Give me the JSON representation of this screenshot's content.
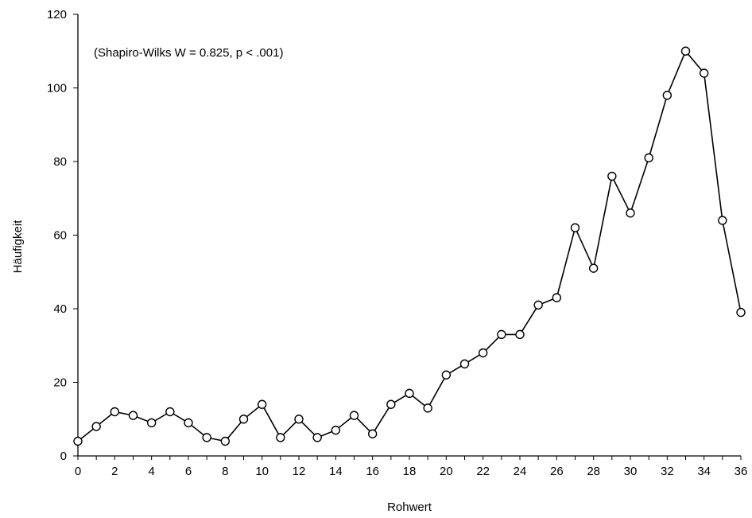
{
  "chart_data": {
    "type": "line",
    "xlabel": "Rohwert",
    "ylabel": "Häufigkeit",
    "annotation": "(Shapiro-Wilks W = 0.825, p < .001)",
    "xlim": [
      0,
      36
    ],
    "ylim": [
      0,
      120
    ],
    "x_ticks": [
      0,
      2,
      4,
      6,
      8,
      10,
      12,
      14,
      16,
      18,
      20,
      22,
      24,
      26,
      28,
      30,
      32,
      34,
      36
    ],
    "x_tick_labels": [
      "0",
      "2",
      "4",
      "6",
      "8",
      "10",
      "12",
      "14",
      "16",
      "18",
      "20",
      "22",
      "24",
      "26",
      "28",
      "30",
      "32",
      "34",
      "36"
    ],
    "y_ticks": [
      0,
      20,
      40,
      60,
      80,
      100,
      120
    ],
    "y_tick_labels": [
      "0",
      "20",
      "40",
      "60",
      "80",
      "100",
      "120"
    ],
    "grid": false,
    "marker": "open-circle",
    "line_color": "#000000",
    "x": [
      0,
      1,
      2,
      3,
      4,
      5,
      6,
      7,
      8,
      9,
      10,
      11,
      12,
      13,
      14,
      15,
      16,
      17,
      18,
      19,
      20,
      21,
      22,
      23,
      24,
      25,
      26,
      27,
      28,
      29,
      30,
      31,
      32,
      33,
      34,
      35,
      36
    ],
    "values": [
      4,
      8,
      12,
      11,
      9,
      12,
      9,
      5,
      4,
      10,
      14,
      5,
      10,
      5,
      7,
      11,
      6,
      14,
      17,
      13,
      22,
      25,
      28,
      33,
      33,
      41,
      43,
      62,
      51,
      76,
      66,
      81,
      98,
      110,
      104,
      64,
      39
    ]
  }
}
